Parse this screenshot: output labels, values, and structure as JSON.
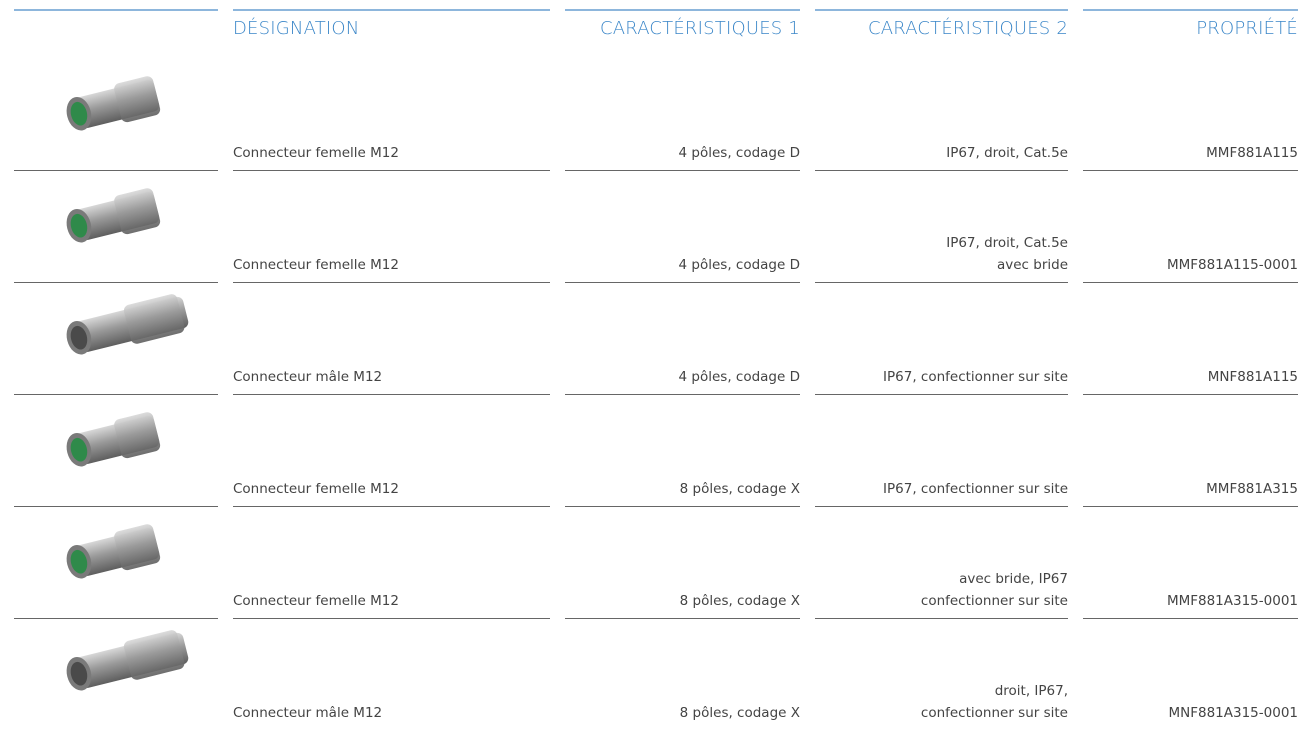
{
  "header": [
    "DÉSIGNATION",
    "CARACTÉRISTIQUES 1",
    "CARACTÉRISTIQUES 2",
    "PROPRIÉTÉ"
  ],
  "rows": [
    {
      "designation": "Connecteur femelle M12",
      "c1": "4 pôles, codage D",
      "c2": [
        "IP67, droit, Cat.5e"
      ],
      "propriete": "MMF881A115"
    },
    {
      "designation": "Connecteur femelle M12",
      "c1": "4 pôles, codage D",
      "c2": [
        "IP67, droit, Cat.5e",
        "avec bride"
      ],
      "propriete": "MMF881A115-0001"
    },
    {
      "designation": "Connecteur mâle M12",
      "c1": "4 pôles, codage D",
      "c2": [
        "IP67, confectionner sur site"
      ],
      "propriete": "MNF881A115"
    },
    {
      "designation": "Connecteur femelle M12",
      "c1": "8 pôles, codage X",
      "c2": [
        "IP67, confectionner sur site"
      ],
      "propriete": "MMF881A315"
    },
    {
      "designation": "Connecteur femelle M12",
      "c1": "8 pôles, codage X",
      "c2": [
        "avec bride, IP67",
        "confectionner sur site"
      ],
      "propriete": "MMF881A315-0001"
    },
    {
      "designation": "Connecteur mâle M12",
      "c1": "8 pôles, codage X",
      "c2": [
        "droit, IP67,",
        "confectionner sur site"
      ],
      "propriete": "MNF881A315-0001"
    }
  ]
}
